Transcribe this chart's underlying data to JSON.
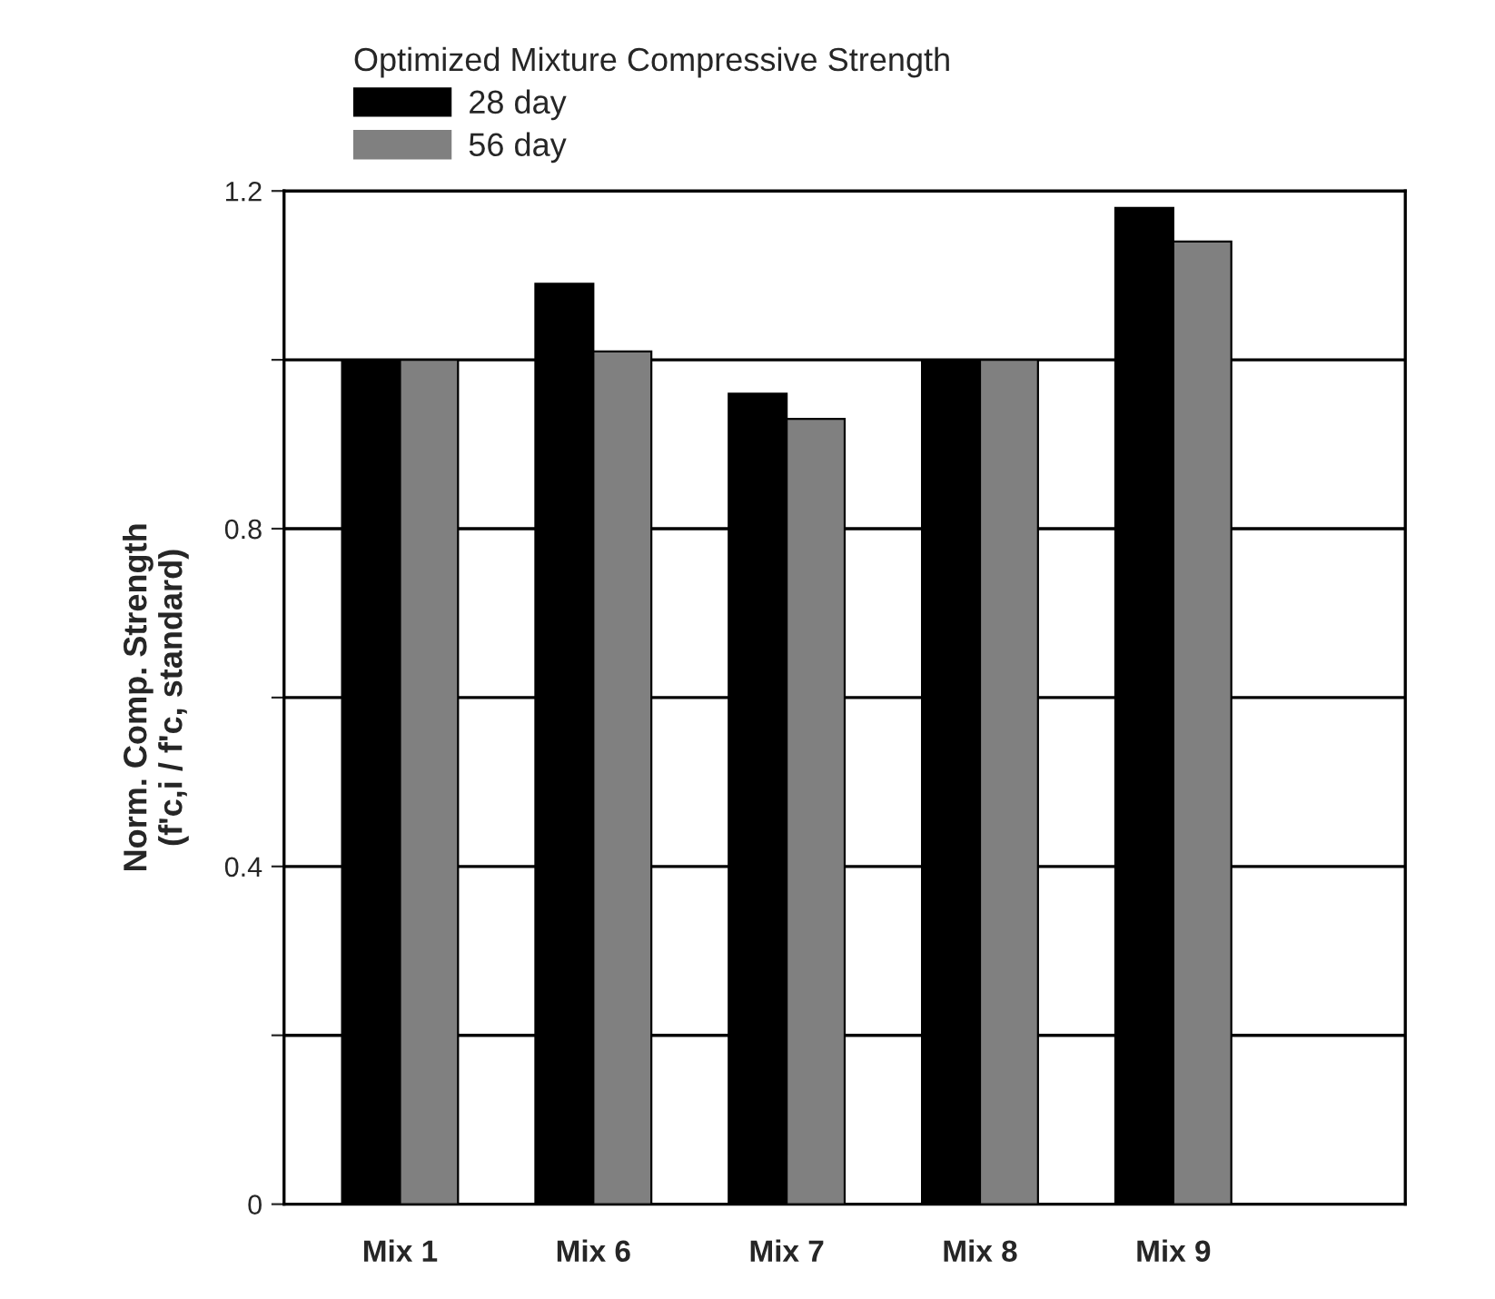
{
  "chart_data": {
    "type": "bar",
    "legend_title": "Optimized Mixture Compressive Strength",
    "ylabel": "Norm. Comp. Strength\n(f'c,i / f'c, standard)",
    "categories": [
      "Mix 1",
      "Mix 6",
      "Mix 7",
      "Mix 8",
      "Mix 9"
    ],
    "series": [
      {
        "name": "28 day",
        "color": "#000000",
        "values": [
          1.0,
          1.09,
          0.96,
          1.0,
          1.18
        ]
      },
      {
        "name": "56 day",
        "color": "#808080",
        "values": [
          1.0,
          1.01,
          0.93,
          1.0,
          1.14
        ]
      }
    ],
    "ylim": [
      0,
      1.2
    ],
    "yticks": [
      0,
      {
        "value": 0.2,
        "label": null
      },
      0.4,
      {
        "value": 0.6,
        "label": null
      },
      0.8,
      {
        "value": 1.0,
        "label": null
      },
      1.2
    ],
    "grid": "y",
    "legend": "top"
  }
}
